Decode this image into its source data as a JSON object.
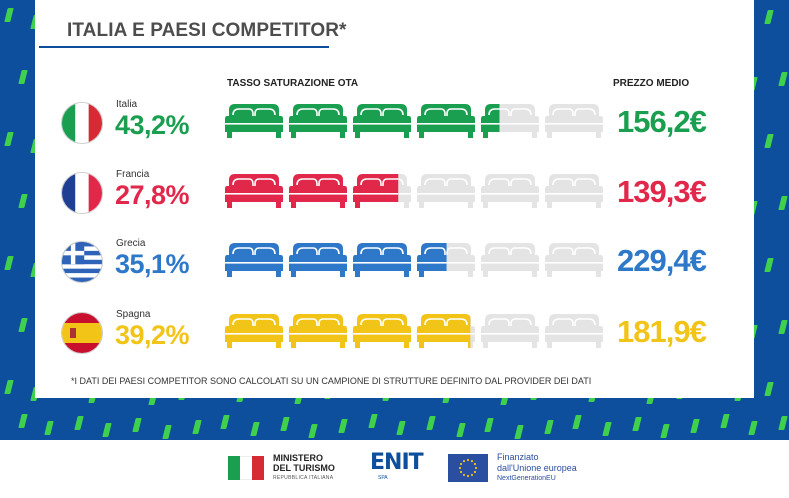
{
  "title": "ITALIA E PAESI COMPETITOR*",
  "header_saturation": "TASSO SATURAZIONE OTA",
  "header_price": "PREZZO MEDIO",
  "footnote": "*I DATI DEI PAESI COMPETITOR SONO CALCOLATI SU UN CAMPIONE DI STRUTTURE DEFINITO DAL PROVIDER DEI DATI",
  "colors": {
    "background": "#0d4f9c",
    "accent": "#3fd14c",
    "empty_bed": "#e4e4e4"
  },
  "rows": [
    {
      "country": "Italia",
      "pct": "43,2%",
      "price": "156,2€",
      "color": "#1a9e4f",
      "flag": "italy-flag"
    },
    {
      "country": "Francia",
      "pct": "27,8%",
      "price": "139,3€",
      "color": "#e1274a",
      "flag": "france-flag"
    },
    {
      "country": "Grecia",
      "pct": "35,1%",
      "price": "229,4€",
      "color": "#2e78c9",
      "flag": "greece-flag"
    },
    {
      "country": "Spagna",
      "pct": "39,2%",
      "price": "181,9€",
      "color": "#f2c417",
      "flag": "spain-flag"
    }
  ],
  "chart_data": {
    "type": "bar",
    "categories": [
      "Italia",
      "Francia",
      "Grecia",
      "Spagna"
    ],
    "series": [
      {
        "name": "TASSO SATURAZIONE OTA",
        "values": [
          43.2,
          27.8,
          35.1,
          39.2
        ]
      },
      {
        "name": "PREZZO MEDIO",
        "values": [
          156.2,
          139.3,
          229.4,
          181.9
        ]
      }
    ],
    "beds_total": 6,
    "beds_per_10pct": 1,
    "units": {
      "saturation": "%",
      "price": "€"
    }
  },
  "footer": {
    "ministry_line1": "MINISTERO",
    "ministry_line2": "DEL TURISMO",
    "ministry_line3": "REPUBBLICA ITALIANA",
    "enit": "ENIT",
    "enit_sub": "SPA",
    "eu_line1": "Finanziato",
    "eu_line2": "dall'Unione europea",
    "eu_line3": "NextGenerationEU"
  }
}
